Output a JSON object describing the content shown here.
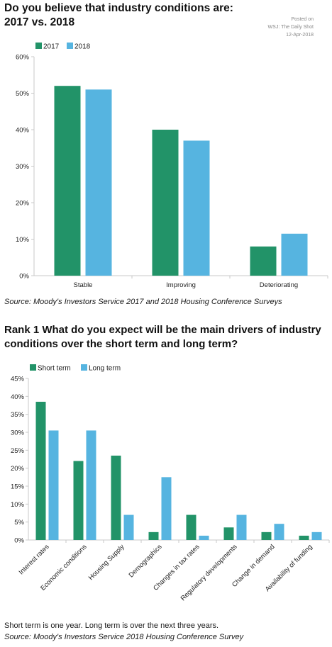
{
  "colors": {
    "series1": "#229368",
    "series2": "#56b4e0",
    "axis": "#c8c8c8"
  },
  "panel1": {
    "title": "Do you believe that industry conditions are: 2017 vs. 2018",
    "posted": [
      "Posted on",
      "WSJ: The Daily Shot",
      "12-Apr-2018"
    ],
    "source": "Source: Moody's Investors Service 2017 and 2018 Housing Conference Surveys"
  },
  "panel2": {
    "title": "Rank 1 What do you expect will be the main drivers of industry conditions over the short term and long term?",
    "note": "Short term is one year. Long term is over the next three years.",
    "source": "Source: Moody's Investors Service 2018 Housing Conference Survey"
  },
  "chart_data": [
    {
      "type": "bar",
      "categories": [
        "Stable",
        "Improving",
        "Deteriorating"
      ],
      "series": [
        {
          "name": "2017",
          "values": [
            52,
            40,
            8
          ]
        },
        {
          "name": "2018",
          "values": [
            51,
            37,
            11.5
          ]
        }
      ],
      "ylim": [
        0,
        60
      ],
      "yticks": [
        "0%",
        "10%",
        "20%",
        "30%",
        "40%",
        "50%",
        "60%"
      ],
      "legend": "top-left"
    },
    {
      "type": "bar",
      "categories": [
        "Interest rates",
        "Economic conditions",
        "Housing Supply",
        "Demographics",
        "Changes in tax rates",
        "Regulatory developments",
        "Change in demand",
        "Availability of funding"
      ],
      "series": [
        {
          "name": "Short term",
          "values": [
            38.5,
            22,
            23.5,
            2.2,
            7,
            3.5,
            2.2,
            1.2
          ]
        },
        {
          "name": "Long term",
          "values": [
            30.5,
            30.5,
            7,
            17.5,
            1.2,
            7,
            4.5,
            2.2
          ]
        }
      ],
      "ylim": [
        0,
        45
      ],
      "yticks": [
        "0%",
        "5%",
        "10%",
        "15%",
        "20%",
        "25%",
        "30%",
        "35%",
        "40%",
        "45%"
      ],
      "legend": "top-left"
    }
  ]
}
